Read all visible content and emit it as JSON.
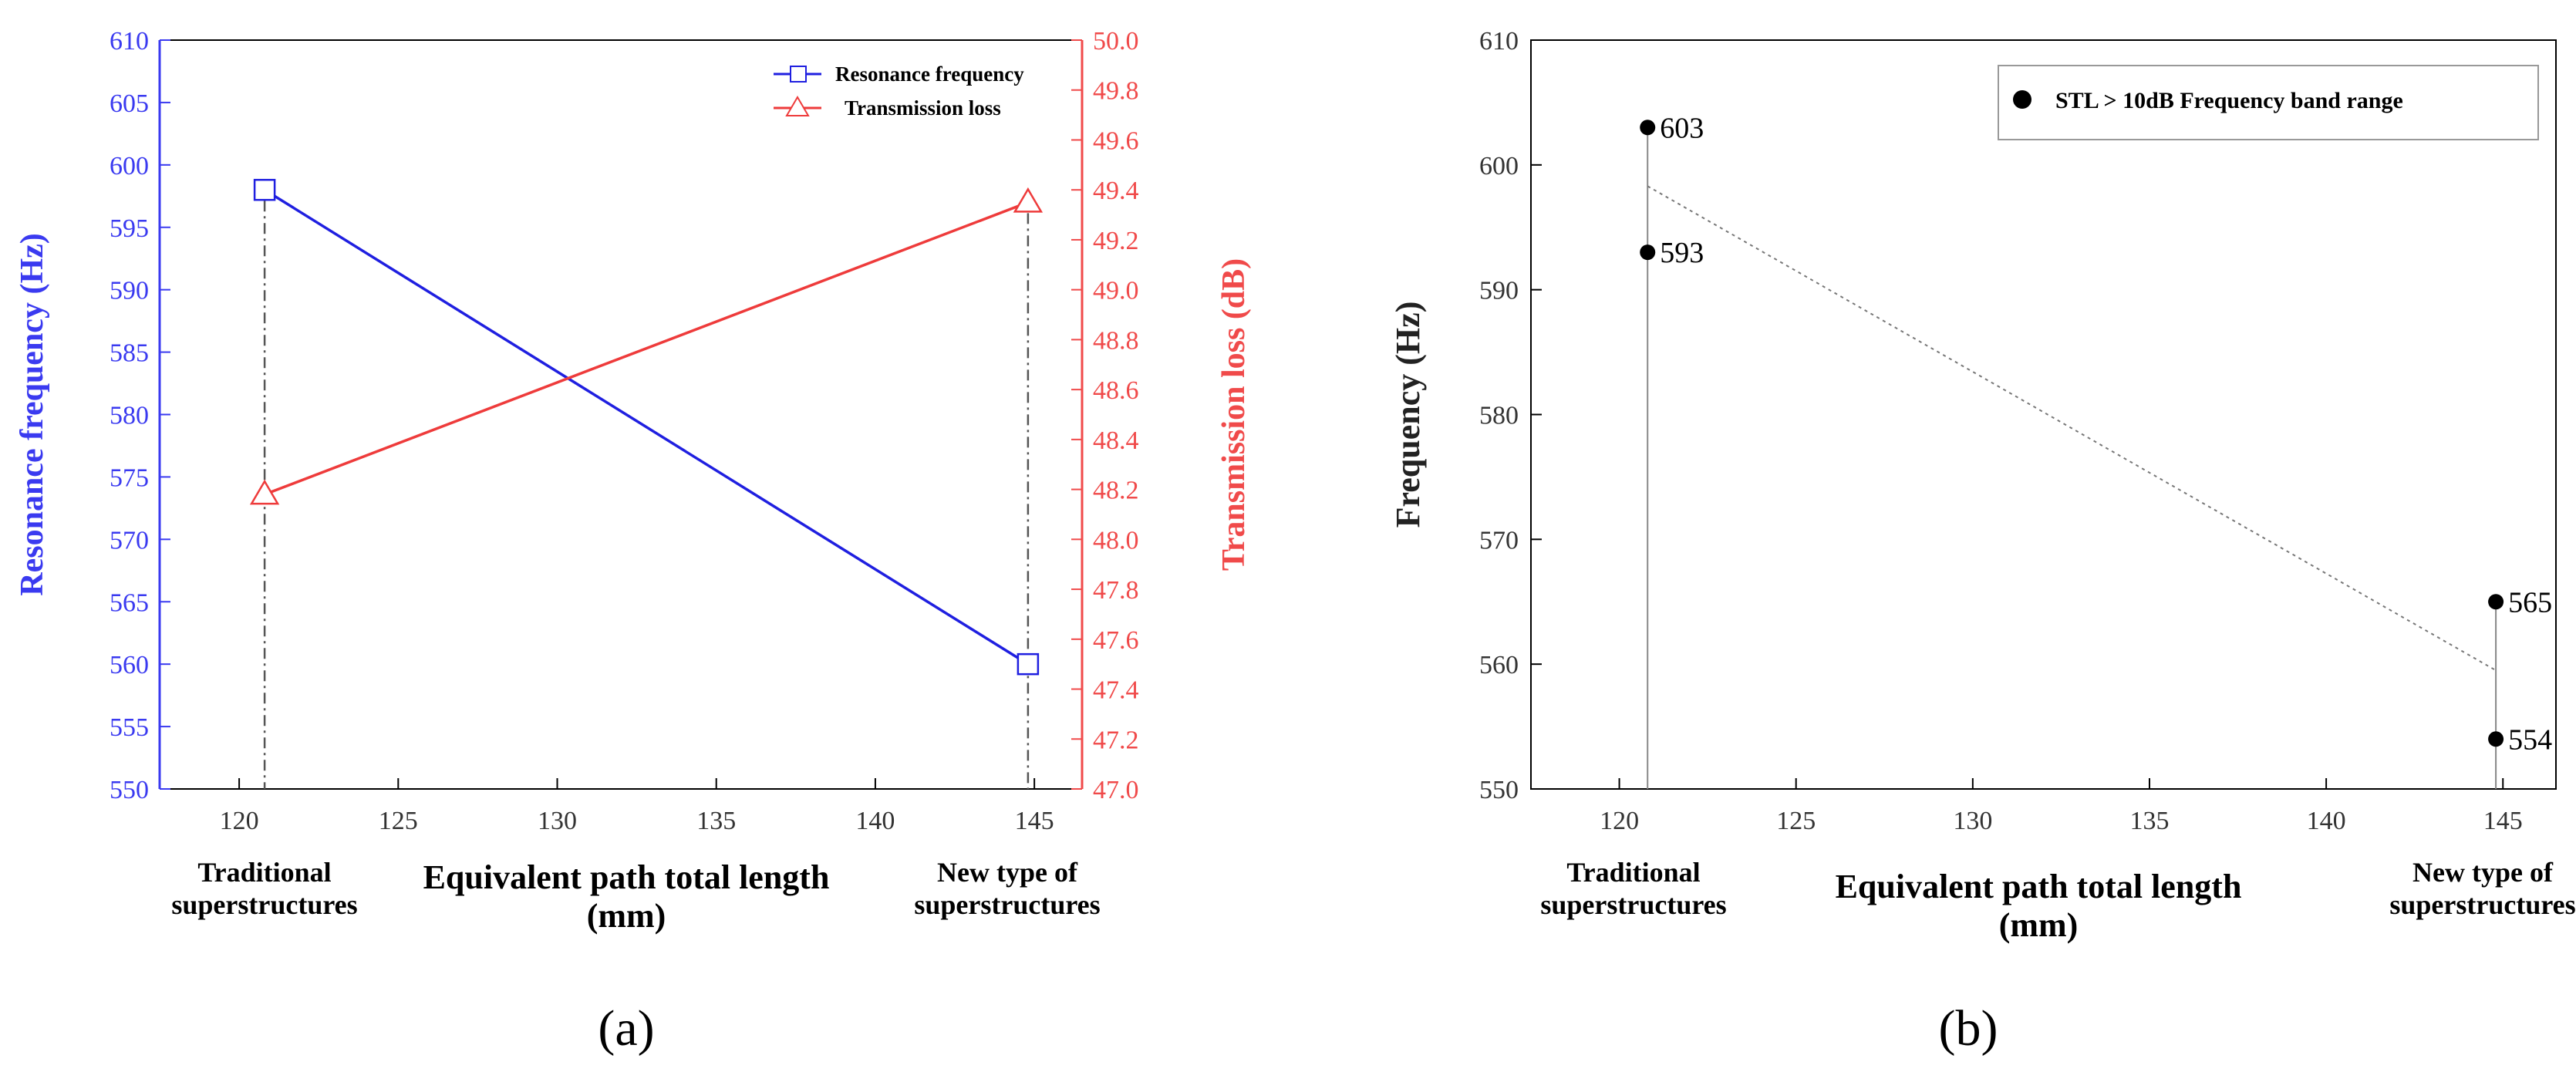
{
  "chart_data": [
    {
      "type": "line",
      "panel_label": "(a)",
      "xlabel": "Equivalent path total length (mm)",
      "xlabel_lines": [
        "Equivalent path total length",
        "(mm)"
      ],
      "x_ticks": [
        120,
        125,
        130,
        135,
        140,
        145
      ],
      "xlim": [
        117.5,
        146.5
      ],
      "x_category_labels": [
        {
          "x": 120.8,
          "lines": [
            "Traditional",
            "superstructures"
          ]
        },
        {
          "x": 144.8,
          "lines": [
            "New type of",
            "superstructures"
          ]
        }
      ],
      "ylabel_left": "Resonance frequency (Hz)",
      "ylim_left": [
        550,
        610
      ],
      "y_ticks_left": [
        550,
        555,
        560,
        565,
        570,
        575,
        580,
        585,
        590,
        595,
        600,
        605,
        610
      ],
      "ylabel_right": "Transmission loss (dB)",
      "ylim_right": [
        47.0,
        50.0
      ],
      "y_ticks_right": [
        "47.0",
        "47.2",
        "47.4",
        "47.6",
        "47.8",
        "48.0",
        "48.2",
        "48.4",
        "48.6",
        "48.8",
        "49.0",
        "49.2",
        "49.4",
        "49.6",
        "49.8",
        "50.0"
      ],
      "series": [
        {
          "name": "Resonance frequency",
          "axis": "left",
          "marker": "square",
          "color": "#1f1fe0",
          "x": [
            120.8,
            144.8
          ],
          "values": [
            598,
            560
          ]
        },
        {
          "name": "Transmission loss",
          "axis": "right",
          "marker": "triangle",
          "color": "#ee3b3b",
          "x": [
            120.8,
            144.8
          ],
          "values": [
            48.18,
            49.35
          ]
        }
      ],
      "legend": "top-right",
      "colors": {
        "left_axis": "#3a3af0",
        "right_axis": "#f04a4a",
        "dashdot": "#555555"
      }
    },
    {
      "type": "scatter",
      "panel_label": "(b)",
      "xlabel": "Equivalent path total length (mm)",
      "xlabel_lines": [
        "Equivalent path total length",
        "(mm)"
      ],
      "x_ticks": [
        120,
        125,
        130,
        135,
        140,
        145
      ],
      "xlim": [
        117.5,
        146.5
      ],
      "x_category_labels": [
        {
          "x": 120.8,
          "lines": [
            "Traditional",
            "superstructures"
          ]
        },
        {
          "x": 144.8,
          "lines": [
            "New type of",
            "superstructures"
          ]
        }
      ],
      "ylabel": "Frequency (Hz)",
      "ylim": [
        550,
        610
      ],
      "y_ticks": [
        550,
        560,
        570,
        580,
        590,
        600,
        610
      ],
      "series": [
        {
          "name": "STL > 10dB Frequency band range",
          "marker": "circle",
          "color": "#000000",
          "points": [
            {
              "x": 120.8,
              "y": 603,
              "label": "603"
            },
            {
              "x": 120.8,
              "y": 593,
              "label": "593"
            },
            {
              "x": 144.8,
              "y": 565,
              "label": "565"
            },
            {
              "x": 144.8,
              "y": 554,
              "label": "554"
            }
          ]
        }
      ],
      "trend_line": {
        "x": [
          120.8,
          144.8
        ],
        "values": [
          598.3,
          559.5
        ]
      },
      "legend": "top-right",
      "colors": {
        "trend": "#777777",
        "droplines": "#888888"
      }
    }
  ]
}
